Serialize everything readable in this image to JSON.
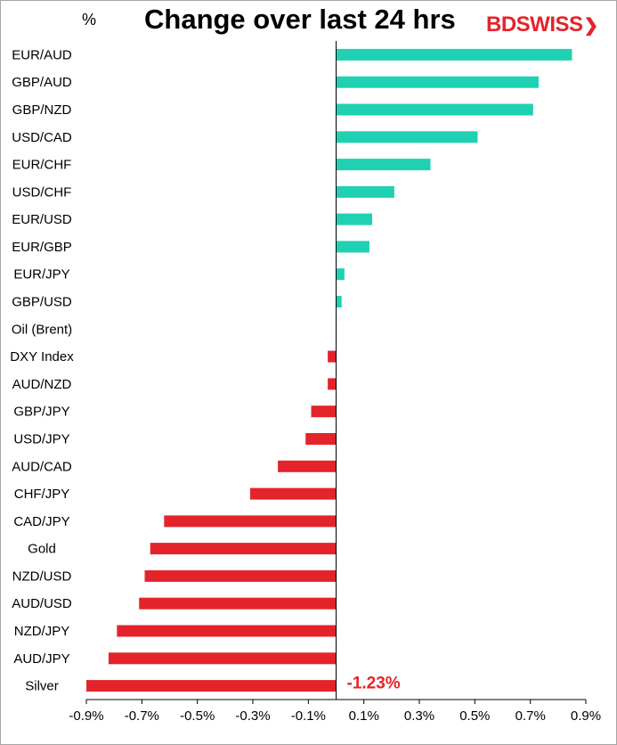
{
  "header": {
    "unit": "%",
    "title": "Change over last 24 hrs",
    "logo_bd": "BD",
    "logo_swiss": "SWISS"
  },
  "chart_data": {
    "type": "bar",
    "orientation": "horizontal",
    "title": "Change over last 24 hrs",
    "ylabel": "%",
    "categories": [
      "EUR/AUD",
      "GBP/AUD",
      "GBP/NZD",
      "USD/CAD",
      "EUR/CHF",
      "USD/CHF",
      "EUR/USD",
      "EUR/GBP",
      "EUR/JPY",
      "GBP/USD",
      "Oil (Brent)",
      "DXY Index",
      "AUD/NZD",
      "GBP/JPY",
      "USD/JPY",
      "AUD/CAD",
      "CHF/JPY",
      "CAD/JPY",
      "Gold",
      "NZD/USD",
      "AUD/USD",
      "NZD/JPY",
      "AUD/JPY",
      "Silver"
    ],
    "values": [
      0.85,
      0.73,
      0.71,
      0.51,
      0.34,
      0.21,
      0.13,
      0.12,
      0.03,
      0.02,
      0.0,
      -0.03,
      -0.03,
      -0.09,
      -0.11,
      -0.21,
      -0.31,
      -0.62,
      -0.67,
      -0.69,
      -0.71,
      -0.79,
      -0.82,
      -0.9
    ],
    "xlim": [
      -0.9,
      0.9
    ],
    "xticks": [
      "-0.9%",
      "-0.7%",
      "-0.5%",
      "-0.3%",
      "-0.1%",
      "0.1%",
      "0.3%",
      "0.5%",
      "0.7%",
      "0.9%"
    ],
    "positive_color": "#1fd1b2",
    "negative_color": "#e3242b",
    "annotation": "-1.23%",
    "annotation_color": "#e3242b"
  }
}
